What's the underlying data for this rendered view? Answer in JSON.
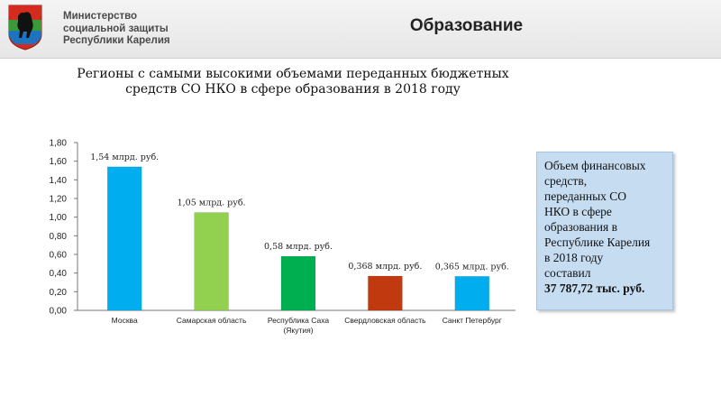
{
  "header": {
    "ministry_lines": [
      "Министерство",
      "социальной защиты",
      "Республики Карелия"
    ],
    "section_title": "Образование"
  },
  "chart_data": {
    "type": "bar",
    "title_lines": [
      "Регионы с самыми высокими объемами переданных бюджетных",
      "средств СО НКО в сфере образования в 2018 году"
    ],
    "categories": [
      [
        "Москва"
      ],
      [
        "Самарская область"
      ],
      [
        "Республика Саха",
        "(Якутия)"
      ],
      [
        "Свердловская область"
      ],
      [
        "Санкт Петербург"
      ]
    ],
    "values": [
      1.54,
      1.05,
      0.58,
      0.368,
      0.365
    ],
    "data_labels": [
      "1,54 млрд. руб.",
      "1,05 млрд. руб.",
      "0,58 млрд. руб.",
      "0,368 млрд. руб.",
      "0,365 млрд. руб."
    ],
    "colors": [
      "#00aeef",
      "#92d050",
      "#00b050",
      "#c0390f",
      "#00aeef"
    ],
    "y_ticks": [
      "0,00",
      "0,20",
      "0,40",
      "0,60",
      "0,80",
      "1,00",
      "1,20",
      "1,40",
      "1,60",
      "1,80"
    ],
    "ylim": [
      0,
      1.8
    ],
    "grid": false,
    "legend": "none"
  },
  "info": {
    "text_lines": [
      "Объем финансовых",
      "средств,",
      "переданных СО",
      "НКО в сфере",
      "образования в",
      "Республике Карелия",
      "в 2018 году",
      "составил"
    ],
    "amount": "37 787,72 тыс. руб."
  }
}
